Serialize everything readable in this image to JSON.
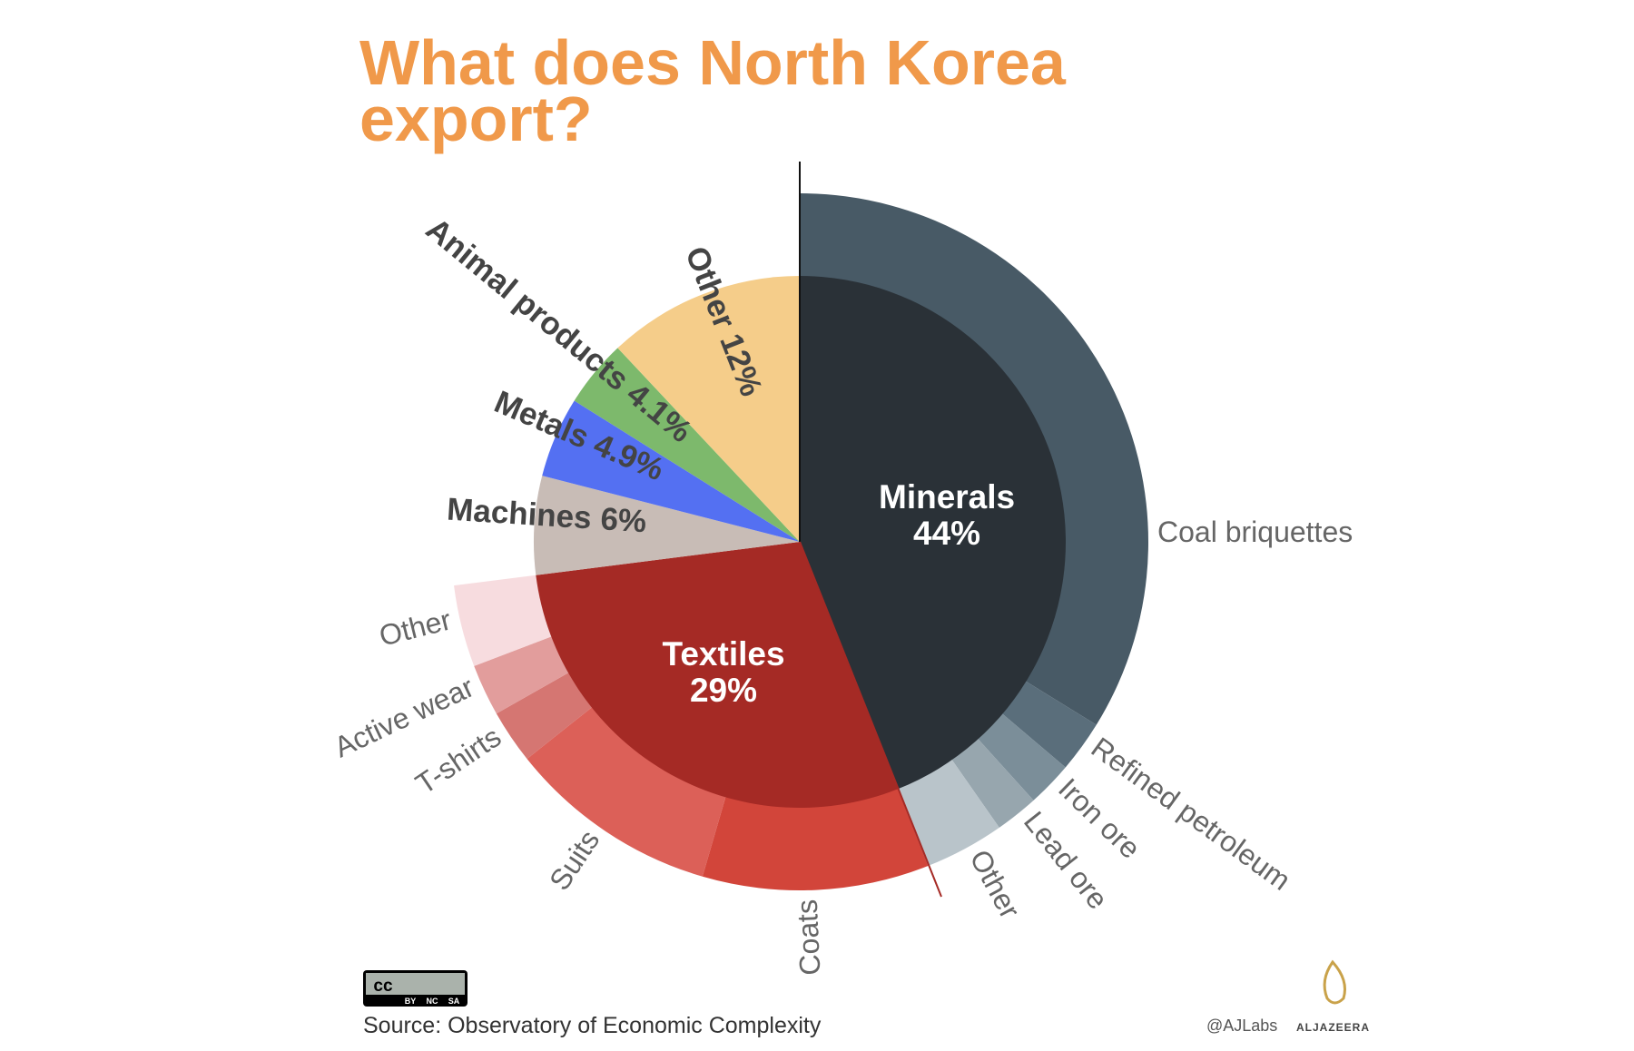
{
  "chart_data": {
    "type": "sunburst",
    "title": [
      "What does North Korea",
      "export?"
    ],
    "categories": [
      "Minerals",
      "Textiles",
      "Machines",
      "Metals",
      "Animal products",
      "Other"
    ],
    "values": [
      44,
      29,
      6,
      4.9,
      4.1,
      12
    ],
    "value_labels": [
      "44%",
      "29%",
      "6%",
      "4.9%",
      "4.1%",
      "12%"
    ],
    "colors": [
      "#2a3137",
      "#a52a25",
      "#c8bcb6",
      "#5470f2",
      "#7db96c",
      "#f5cd8a"
    ],
    "breakdown": [
      {
        "categories": [
          "Coal briquettes",
          "Refined petroleum",
          "Iron ore",
          "Lead ore",
          "Other"
        ],
        "values": [
          33.8,
          2.4,
          2.1,
          2,
          3.7
        ],
        "colors": [
          "#485a66",
          "#5a6e7b",
          "#7b8e99",
          "#97a6ae",
          "#b9c4ca"
        ]
      },
      {
        "categories": [
          "Coats",
          "Suits",
          "T-shirts",
          "Active wear",
          "Other"
        ],
        "values": [
          10.5,
          9.8,
          2.5,
          2.4,
          3.8
        ],
        "colors": [
          "#d2453a",
          "#dc6058",
          "#d57672",
          "#e29d9c",
          "#f7dcdf"
        ]
      },
      null,
      null,
      null,
      null
    ],
    "license": {
      "mark": "cc",
      "terms": [
        "BY",
        "NC",
        "SA"
      ]
    },
    "source": "Source: Observatory of Economic Complexity",
    "credit": "@AJLabs",
    "brand": "ALJAZEERA"
  }
}
